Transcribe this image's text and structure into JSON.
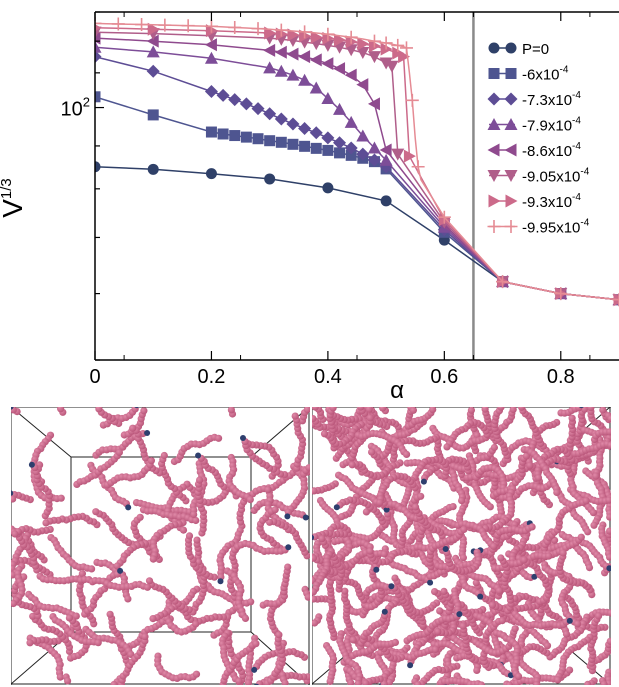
{
  "chart_data": {
    "type": "line",
    "xlabel": "α",
    "ylabel_base": "V",
    "ylabel_exp": "1/3",
    "xlim": [
      0,
      0.9
    ],
    "ylim": [
      50,
      130
    ],
    "y_scale": "log",
    "x_ticks": [
      "0",
      "0.2",
      "0.4",
      "0.6",
      "0.8"
    ],
    "x_tick_values": [
      0,
      0.2,
      0.4,
      0.6,
      0.8
    ],
    "y_tick_base": "10",
    "y_tick_exp": "2",
    "y_tick_value": 100,
    "vertical_line_x": 0.65,
    "legend_position": "top-right",
    "series": [
      {
        "label_base": "P=0",
        "label_exp": "",
        "marker": "circle",
        "color": "#2f4068",
        "marker_step": 1,
        "x": [
          0,
          0.1,
          0.2,
          0.3,
          0.4,
          0.5,
          0.6,
          0.7,
          0.8,
          0.9
        ],
        "y": [
          85,
          84.4,
          83.4,
          82.2,
          80.2,
          77.4,
          69.5,
          62,
          60,
          59
        ]
      },
      {
        "label_base": "-6x10",
        "label_exp": "-4",
        "marker": "square",
        "color": "#4e5590",
        "marker_step": 1,
        "x": [
          0,
          0.1,
          0.2,
          0.22,
          0.24,
          0.26,
          0.28,
          0.3,
          0.32,
          0.34,
          0.36,
          0.38,
          0.4,
          0.42,
          0.44,
          0.46,
          0.48,
          0.5,
          0.6,
          0.7,
          0.8,
          0.9
        ],
        "y": [
          103,
          98,
          93.5,
          93,
          92.6,
          92.2,
          91.8,
          91.3,
          90.9,
          90.4,
          89.9,
          89.4,
          88.9,
          88.3,
          87.7,
          87,
          86.2,
          84.5,
          71,
          62,
          60,
          59
        ]
      },
      {
        "label_base": "-7.3x10",
        "label_exp": "-4",
        "marker": "diamond",
        "color": "#5d4d95",
        "marker_step": 1,
        "x": [
          0,
          0.1,
          0.2,
          0.22,
          0.24,
          0.26,
          0.28,
          0.3,
          0.32,
          0.34,
          0.36,
          0.38,
          0.4,
          0.42,
          0.44,
          0.46,
          0.48,
          0.5,
          0.6,
          0.7,
          0.8,
          0.9
        ],
        "y": [
          115,
          110.5,
          104.5,
          103.4,
          102.2,
          101,
          99.7,
          98.3,
          96.9,
          95.6,
          94.4,
          93.3,
          92,
          90.8,
          89.5,
          88,
          86.6,
          85,
          71.5,
          62,
          60,
          59
        ]
      },
      {
        "label_base": "-7.9x10",
        "label_exp": "-4",
        "marker": "triangle-up",
        "color": "#7d4d98",
        "marker_step": 1,
        "x": [
          0,
          0.1,
          0.2,
          0.3,
          0.32,
          0.34,
          0.36,
          0.38,
          0.4,
          0.42,
          0.44,
          0.46,
          0.48,
          0.5,
          0.6,
          0.7,
          0.8,
          0.9
        ],
        "y": [
          118,
          116.5,
          114.5,
          111.5,
          110.5,
          109.3,
          107.8,
          105.5,
          102.5,
          99.5,
          96,
          92.5,
          89.5,
          86.5,
          72,
          62,
          60,
          59
        ]
      },
      {
        "label_base": "-8.6x10",
        "label_exp": "-4",
        "marker": "triangle-left",
        "color": "#8f4a8e",
        "marker_step": 1,
        "x": [
          0,
          0.1,
          0.2,
          0.3,
          0.32,
          0.34,
          0.36,
          0.38,
          0.4,
          0.42,
          0.44,
          0.46,
          0.48,
          0.5,
          0.6,
          0.7,
          0.8,
          0.9
        ],
        "y": [
          121,
          120,
          118.8,
          117,
          116.4,
          115.8,
          115,
          114,
          112.8,
          111.3,
          109.3,
          106.5,
          101,
          89,
          72.5,
          62,
          60,
          59
        ]
      },
      {
        "label_base": "-9.05x10",
        "label_exp": "-4",
        "marker": "triangle-down",
        "color": "#b05e8a",
        "marker_step": 1,
        "x": [
          0,
          0.1,
          0.2,
          0.3,
          0.32,
          0.34,
          0.36,
          0.38,
          0.4,
          0.42,
          0.44,
          0.46,
          0.48,
          0.5,
          0.51,
          0.52,
          0.6,
          0.7,
          0.8,
          0.9
        ],
        "y": [
          123,
          122.5,
          121.8,
          121,
          120.6,
          120.2,
          119.7,
          119.2,
          118.6,
          118,
          117.2,
          116.3,
          115,
          113,
          112,
          88,
          73,
          62,
          60,
          59
        ]
      },
      {
        "label_base": "-9.3x10",
        "label_exp": "-4",
        "marker": "triangle-right",
        "color": "#cc6a8a",
        "marker_step": 1,
        "x": [
          0,
          0.1,
          0.2,
          0.3,
          0.32,
          0.34,
          0.36,
          0.38,
          0.4,
          0.42,
          0.44,
          0.46,
          0.48,
          0.5,
          0.52,
          0.53,
          0.54,
          0.6,
          0.7,
          0.8,
          0.9
        ],
        "y": [
          124.5,
          124,
          123.5,
          122.7,
          122.4,
          122.1,
          121.7,
          121.3,
          120.9,
          120.4,
          119.8,
          119.1,
          118.4,
          117.4,
          116.1,
          115,
          87.5,
          73.5,
          62,
          60,
          59
        ]
      },
      {
        "label_base": "-9.95x10",
        "label_exp": "-4",
        "marker": "plus",
        "color": "#e58b94",
        "marker_step": 2,
        "x": [
          0,
          0.02,
          0.04,
          0.06,
          0.08,
          0.1,
          0.12,
          0.14,
          0.16,
          0.18,
          0.2,
          0.22,
          0.24,
          0.26,
          0.28,
          0.3,
          0.32,
          0.34,
          0.36,
          0.38,
          0.4,
          0.42,
          0.44,
          0.46,
          0.48,
          0.49,
          0.5,
          0.51,
          0.52,
          0.53,
          0.535,
          0.54,
          0.545,
          0.55,
          0.555,
          0.56,
          0.6,
          0.7,
          0.8,
          0.9
        ],
        "y": [
          126,
          125.9,
          125.8,
          125.7,
          125.6,
          125.5,
          125.4,
          125.3,
          125.2,
          125.1,
          125,
          124.8,
          124.6,
          124.4,
          124.2,
          124,
          123.7,
          123.4,
          123.1,
          122.7,
          122.3,
          121.8,
          121.3,
          120.7,
          120,
          119.7,
          119.4,
          119,
          118.6,
          118.2,
          117.8,
          110,
          102,
          92,
          85,
          82,
          74,
          62,
          60,
          59
        ]
      }
    ]
  },
  "renders": {
    "particle_color": "#b85478",
    "particle_highlight": "#e08aa8",
    "junction_color": "#2e3f6e",
    "frame_color": "#222222"
  }
}
